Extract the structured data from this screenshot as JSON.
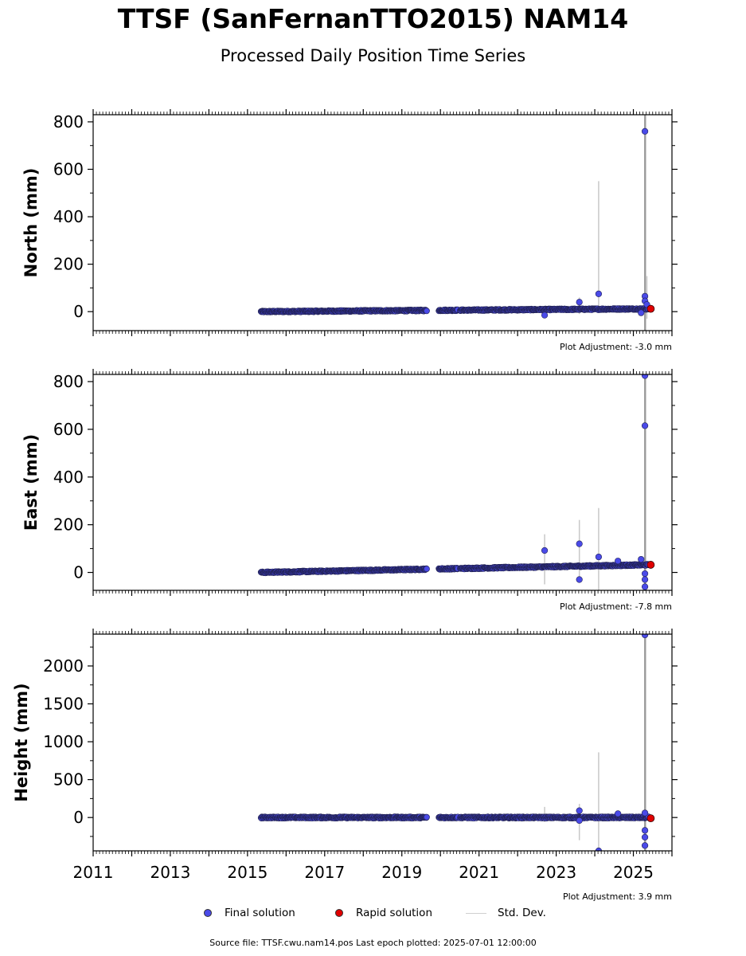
{
  "title": "TTSF (SanFernanTTO2015) NAM14",
  "subtitle": "Processed Daily Position Time Series",
  "legend": {
    "final": "Final solution",
    "rapid": "Rapid solution",
    "std": "Std. Dev."
  },
  "footer": "Source file: TTSF.cwu.nam14.pos  Last epoch plotted: 2025-07-01 12:00:00",
  "colors": {
    "final": "#4a4ae8",
    "rapid": "#e00000",
    "std": "#c8c8c8"
  },
  "chart_data": [
    {
      "type": "scatter",
      "ylabel": "North (mm)",
      "adjustment": "Plot Adjustment: -3.0 mm",
      "xlim": [
        2011,
        2026
      ],
      "ylim": [
        -80,
        830
      ],
      "yticks": [
        0,
        200,
        400,
        600,
        800
      ],
      "xtick_labels_shown": false,
      "trend": {
        "start": [
          2015.35,
          0
        ],
        "end": [
          2025.4,
          12
        ],
        "noise": 3
      },
      "gaps": [
        [
          2019.65,
          2019.95
        ],
        [
          2020.45,
          2020.5
        ]
      ],
      "outliers": [
        [
          2022.7,
          -15
        ],
        [
          2023.6,
          40
        ],
        [
          2024.1,
          75
        ],
        [
          2025.2,
          -5
        ],
        [
          2025.3,
          760
        ],
        [
          2025.3,
          65
        ],
        [
          2025.3,
          45
        ],
        [
          2025.35,
          30
        ]
      ],
      "std_bars": [
        [
          2024.1,
          0,
          550
        ],
        [
          2025.3,
          -80,
          830
        ],
        [
          2025.32,
          -80,
          830
        ],
        [
          2023.6,
          -10,
          60
        ],
        [
          2025.35,
          -30,
          150
        ]
      ],
      "rapid": [
        [
          2025.45,
          12
        ]
      ]
    },
    {
      "type": "scatter",
      "ylabel": "East (mm)",
      "adjustment": "Plot Adjustment: -7.8 mm",
      "xlim": [
        2011,
        2026
      ],
      "ylim": [
        -75,
        830
      ],
      "yticks": [
        0,
        200,
        400,
        600,
        800
      ],
      "xtick_labels_shown": false,
      "trend": {
        "start": [
          2015.35,
          0
        ],
        "end": [
          2025.4,
          32
        ],
        "noise": 3
      },
      "gaps": [
        [
          2019.65,
          2019.95
        ],
        [
          2020.45,
          2020.5
        ]
      ],
      "outliers": [
        [
          2022.7,
          92
        ],
        [
          2023.6,
          120
        ],
        [
          2023.6,
          -30
        ],
        [
          2024.1,
          65
        ],
        [
          2024.6,
          48
        ],
        [
          2025.2,
          55
        ],
        [
          2025.3,
          825
        ],
        [
          2025.3,
          615
        ],
        [
          2025.3,
          -5
        ],
        [
          2025.3,
          -30
        ],
        [
          2025.3,
          -60
        ]
      ],
      "std_bars": [
        [
          2022.7,
          -50,
          160
        ],
        [
          2023.6,
          -40,
          220
        ],
        [
          2024.1,
          -75,
          270
        ],
        [
          2025.3,
          -75,
          830
        ],
        [
          2025.32,
          -75,
          830
        ]
      ],
      "rapid": [
        [
          2025.45,
          32
        ]
      ]
    },
    {
      "type": "scatter",
      "ylabel": "Height (mm)",
      "adjustment": "Plot Adjustment: 3.9 mm",
      "xlim": [
        2011,
        2026
      ],
      "ylim": [
        -440,
        2420
      ],
      "yticks": [
        0,
        500,
        1000,
        1500,
        2000
      ],
      "xticks": [
        2011,
        2013,
        2015,
        2017,
        2019,
        2021,
        2023,
        2025
      ],
      "xtick_labels_shown": true,
      "trend": {
        "start": [
          2015.35,
          0
        ],
        "end": [
          2025.4,
          0
        ],
        "noise": 10
      },
      "gaps": [
        [
          2019.65,
          2019.95
        ],
        [
          2020.45,
          2020.5
        ]
      ],
      "outliers": [
        [
          2023.6,
          90
        ],
        [
          2023.6,
          -40
        ],
        [
          2024.1,
          -440
        ],
        [
          2024.6,
          50
        ],
        [
          2025.3,
          2410
        ],
        [
          2025.3,
          60
        ],
        [
          2025.3,
          -170
        ],
        [
          2025.3,
          -260
        ],
        [
          2025.3,
          -370
        ]
      ],
      "std_bars": [
        [
          2022.7,
          -60,
          140
        ],
        [
          2023.6,
          -300,
          180
        ],
        [
          2024.1,
          -440,
          860
        ],
        [
          2025.3,
          -440,
          2420
        ],
        [
          2025.32,
          -440,
          2420
        ]
      ],
      "rapid": [
        [
          2025.45,
          -10
        ]
      ]
    }
  ]
}
